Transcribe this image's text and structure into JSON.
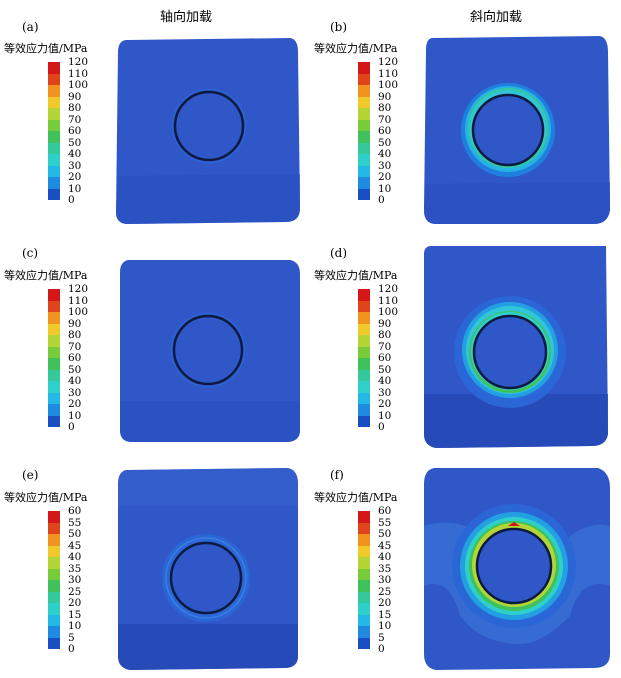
{
  "column_titles": [
    "轴向加载",
    "斜向加载"
  ],
  "legend_title": "等效应力值/MPa",
  "color_scale": [
    "#1a4fc4",
    "#1e8ae0",
    "#23b8e6",
    "#2fd0cc",
    "#34c99a",
    "#3fc25c",
    "#78cc3a",
    "#b3d636",
    "#f0c92a",
    "#f0931f",
    "#e0441b",
    "#d4181a"
  ],
  "panels": [
    {
      "label": "(a)",
      "legend_ticks": [
        "120",
        "110",
        "100",
        "90",
        "80",
        "70",
        "60",
        "50",
        "40",
        "30",
        "20",
        "10",
        "0"
      ]
    },
    {
      "label": "(b)",
      "legend_ticks": [
        "120",
        "110",
        "100",
        "90",
        "80",
        "70",
        "60",
        "50",
        "40",
        "30",
        "20",
        "10",
        "0"
      ]
    },
    {
      "label": "(c)",
      "legend_ticks": [
        "120",
        "110",
        "100",
        "90",
        "80",
        "70",
        "60",
        "50",
        "40",
        "30",
        "20",
        "10",
        "0"
      ]
    },
    {
      "label": "(d)",
      "legend_ticks": [
        "120",
        "110",
        "100",
        "90",
        "80",
        "70",
        "60",
        "50",
        "40",
        "30",
        "20",
        "10",
        "0"
      ]
    },
    {
      "label": "(e)",
      "legend_ticks": [
        "60",
        "55",
        "50",
        "45",
        "40",
        "35",
        "30",
        "25",
        "20",
        "15",
        "10",
        "5",
        "0"
      ]
    },
    {
      "label": "(f)",
      "legend_ticks": [
        "60",
        "55",
        "50",
        "45",
        "40",
        "35",
        "30",
        "25",
        "20",
        "15",
        "10",
        "5",
        "0"
      ]
    }
  ]
}
